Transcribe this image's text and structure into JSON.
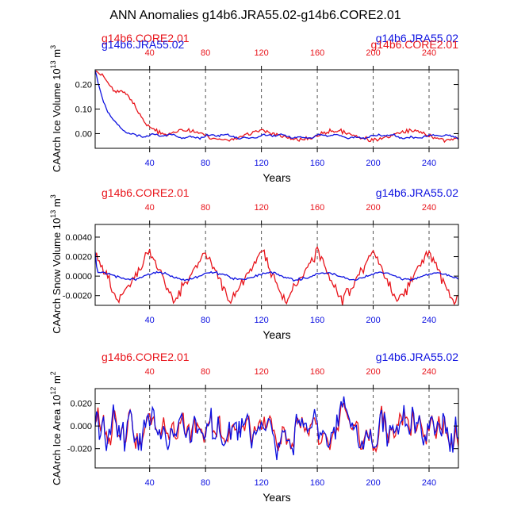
{
  "title": "ANN Anomalies g14b6.JRA55.02-g14b6.CORE2.01",
  "colors": {
    "red": "#e8141b",
    "blue": "#0c10e0",
    "axis": "#000000",
    "grid": "#555555"
  },
  "chart_data": [
    {
      "type": "line",
      "ylabel_main": "CAArch Ice Volume 10",
      "ylabel_exp": "13",
      "ylabel_unit": "m",
      "ylabel_unit_exp": "3",
      "xlabel": "Years",
      "xlim": [
        1,
        261
      ],
      "ylim": [
        -0.06,
        0.26
      ],
      "yticks": [
        0.2,
        0.1,
        0.0
      ],
      "ytick_labels": [
        "0.20",
        "0.10",
        "0.00"
      ],
      "top_left_label": "g14b6.CORE2.01",
      "top_right_label": "g14b6.JRA55.02",
      "top_left_label_2": "g14b6.JRA55.02",
      "top_right_label_2": "g14b6.CORE2.01",
      "xticks": [
        40,
        80,
        120,
        160,
        200,
        240
      ],
      "xtick_labels": [
        "40",
        "80",
        "120",
        "160",
        "200",
        "240"
      ],
      "series": [
        {
          "name": "g14b6.CORE2.01",
          "color": "red",
          "model": "ice_core"
        },
        {
          "name": "g14b6.JRA55.02",
          "color": "blue",
          "model": "ice_jra"
        }
      ]
    },
    {
      "type": "line",
      "ylabel_main": "CAArch Snow Volume 10",
      "ylabel_exp": "13",
      "ylabel_unit": "m",
      "ylabel_unit_exp": "3",
      "xlabel": "Years",
      "xlim": [
        1,
        261
      ],
      "ylim": [
        -0.003,
        0.0053
      ],
      "yticks": [
        0.004,
        0.002,
        0.0,
        -0.002
      ],
      "ytick_labels": [
        "0.0040",
        "0.0020",
        "0.0000",
        "-0.0020"
      ],
      "top_left_label": "g14b6.CORE2.01",
      "top_right_label": "g14b6.JRA55.02",
      "xticks": [
        40,
        80,
        120,
        160,
        200,
        240
      ],
      "xtick_labels": [
        "40",
        "80",
        "120",
        "160",
        "200",
        "240"
      ],
      "series": [
        {
          "name": "g14b6.CORE2.01",
          "color": "red",
          "model": "snow_core"
        },
        {
          "name": "g14b6.JRA55.02",
          "color": "blue",
          "model": "snow_jra"
        }
      ]
    },
    {
      "type": "line",
      "ylabel_main": "CAArch Ice Area 10",
      "ylabel_exp": "12",
      "ylabel_unit": "m",
      "ylabel_unit_exp": "2",
      "xlabel": "Years",
      "xlim": [
        1,
        261
      ],
      "ylim": [
        -0.037,
        0.033
      ],
      "yticks": [
        0.02,
        0.0,
        -0.02
      ],
      "ytick_labels": [
        "0.020",
        "0.000",
        "-0.020"
      ],
      "top_left_label": "g14b6.CORE2.01",
      "top_right_label": "g14b6.JRA55.02",
      "xticks": [
        40,
        80,
        120,
        160,
        200,
        240
      ],
      "xtick_labels": [
        "40",
        "80",
        "120",
        "160",
        "200",
        "240"
      ],
      "series": [
        {
          "name": "g14b6.CORE2.01",
          "color": "red",
          "model": "area_core"
        },
        {
          "name": "g14b6.JRA55.02",
          "color": "blue",
          "model": "area_jra"
        }
      ]
    }
  ]
}
